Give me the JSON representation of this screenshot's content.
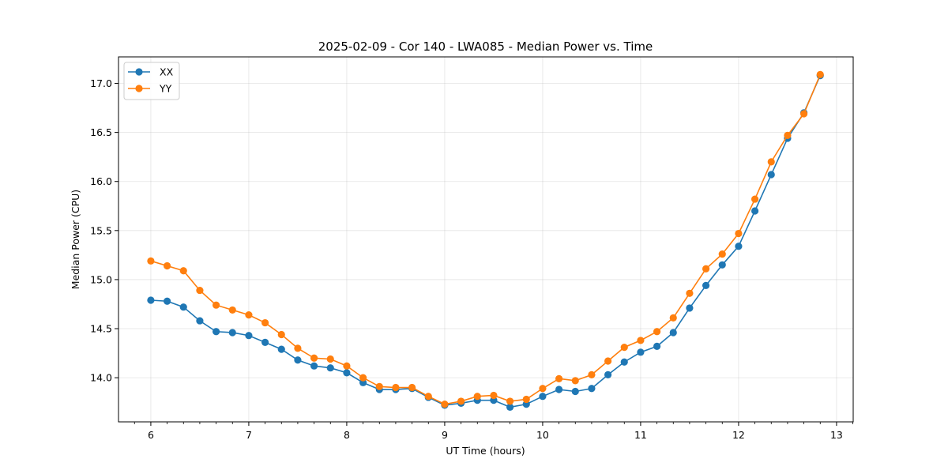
{
  "chart_data": {
    "type": "line",
    "title": "2025-02-09 - Cor 140 - LWA085 - Median Power vs. Time",
    "xlabel": "UT Time (hours)",
    "ylabel": "Median Power (CPU)",
    "xlim": [
      5.67,
      13.17
    ],
    "ylim": [
      13.55,
      17.27
    ],
    "grid": true,
    "legend_position": "top-left",
    "x_ticks": [
      6,
      7,
      8,
      9,
      10,
      11,
      12,
      13
    ],
    "x_tick_labels": [
      "6",
      "7",
      "8",
      "9",
      "10",
      "11",
      "12",
      "13"
    ],
    "y_ticks": [
      14.0,
      14.5,
      15.0,
      15.5,
      16.0,
      16.5,
      17.0
    ],
    "y_tick_labels": [
      "14.0",
      "14.5",
      "15.0",
      "15.5",
      "16.0",
      "16.5",
      "17.0"
    ],
    "x": [
      6.0,
      6.1667,
      6.3333,
      6.5,
      6.6667,
      6.8333,
      7.0,
      7.1667,
      7.3333,
      7.5,
      7.6667,
      7.8333,
      8.0,
      8.1667,
      8.3333,
      8.5,
      8.6667,
      8.8333,
      9.0,
      9.1667,
      9.3333,
      9.5,
      9.6667,
      9.8333,
      10.0,
      10.1667,
      10.3333,
      10.5,
      10.6667,
      10.8333,
      11.0,
      11.1667,
      11.3333,
      11.5,
      11.6667,
      11.8333,
      12.0,
      12.1667,
      12.3333,
      12.5,
      12.6667,
      12.8333
    ],
    "series": [
      {
        "name": "XX",
        "color": "#1f77b4",
        "values": [
          14.79,
          14.78,
          14.72,
          14.58,
          14.47,
          14.46,
          14.43,
          14.36,
          14.29,
          14.18,
          14.12,
          14.1,
          14.05,
          13.95,
          13.88,
          13.88,
          13.89,
          13.8,
          13.72,
          13.74,
          13.77,
          13.77,
          13.7,
          13.73,
          13.81,
          13.88,
          13.86,
          13.89,
          14.03,
          14.16,
          14.26,
          14.32,
          14.46,
          14.71,
          14.94,
          15.15,
          15.34,
          15.7,
          16.07,
          16.44,
          16.7,
          17.08
        ]
      },
      {
        "name": "YY",
        "color": "#ff7f0e",
        "values": [
          15.19,
          15.14,
          15.09,
          14.89,
          14.74,
          14.69,
          14.64,
          14.56,
          14.44,
          14.3,
          14.2,
          14.19,
          14.12,
          14.0,
          13.91,
          13.9,
          13.9,
          13.81,
          13.73,
          13.76,
          13.81,
          13.82,
          13.76,
          13.78,
          13.89,
          13.99,
          13.97,
          14.03,
          14.17,
          14.31,
          14.38,
          14.47,
          14.61,
          14.86,
          15.11,
          15.26,
          15.47,
          15.82,
          16.2,
          16.47,
          16.69,
          17.09
        ]
      }
    ]
  }
}
